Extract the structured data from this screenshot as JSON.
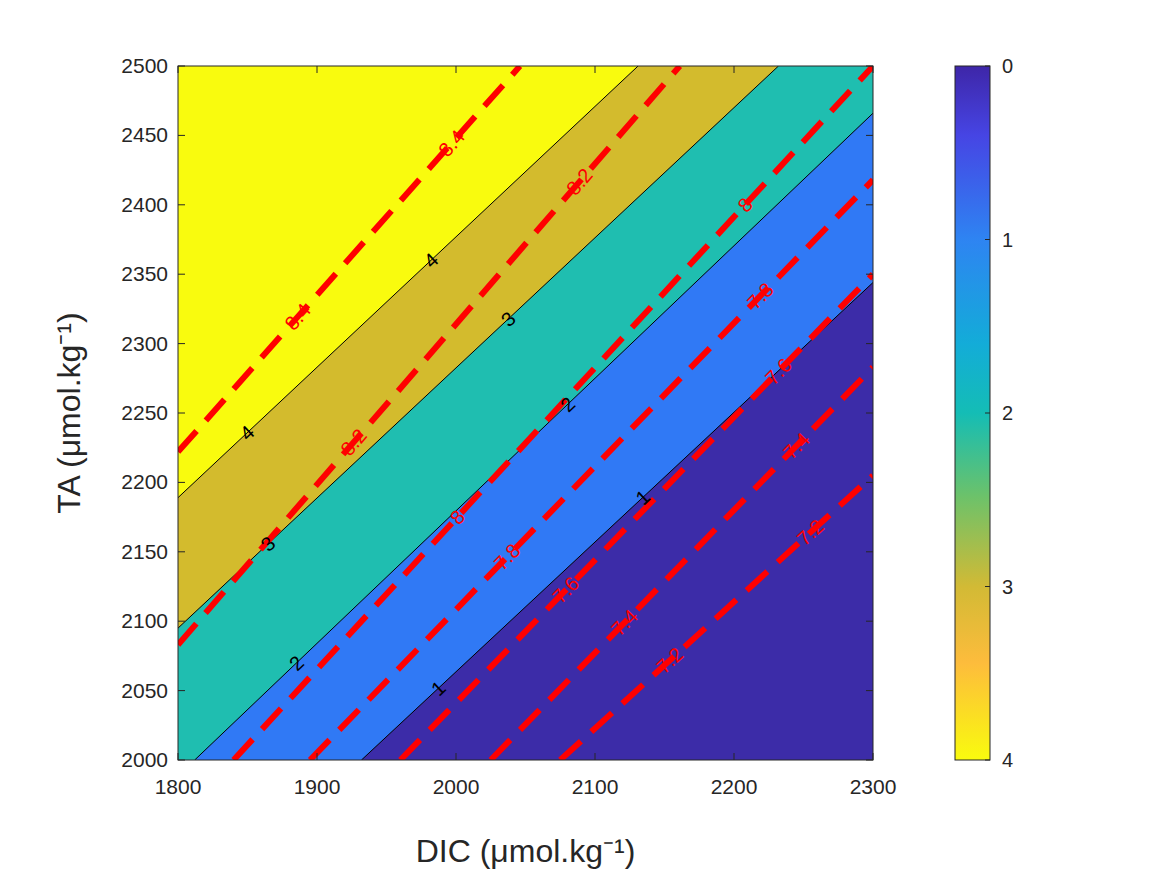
{
  "chart_data": {
    "type": "contour",
    "x_label": "DIC (μmol.kg⁻¹)",
    "y_label": "TA (μmol.kg⁻¹)",
    "xlim": [
      1800,
      2300
    ],
    "xticks": [
      1800,
      1900,
      2000,
      2100,
      2200,
      2300
    ],
    "ylim": [
      2000,
      2500
    ],
    "yticks": [
      2000,
      2050,
      2100,
      2150,
      2200,
      2250,
      2300,
      2350,
      2400,
      2450,
      2500
    ],
    "filled_contours": {
      "colors": [
        "#3c2ca8",
        "#3079f5",
        "#1fbeb0",
        "#d3bb2d",
        "#f9fb0e"
      ],
      "lines": [
        {
          "level": 1,
          "x": [
            1932,
            2300
          ],
          "y": [
            2000,
            2344
          ]
        },
        {
          "level": 2,
          "x": [
            1812,
            2300
          ],
          "y": [
            2000,
            2466
          ]
        },
        {
          "level": 3,
          "x": [
            1800,
            2232
          ],
          "y": [
            2095,
            2500
          ]
        },
        {
          "level": 4,
          "x": [
            1800,
            2131
          ],
          "y": [
            2189,
            2500
          ]
        }
      ]
    },
    "line_contours": {
      "color": "#ff0000",
      "line_style": "dashed",
      "lines": [
        {
          "level": 8.4,
          "x": [
            1800,
            2046
          ],
          "y": [
            2222,
            2500
          ]
        },
        {
          "level": 8.2,
          "x": [
            1800,
            2161
          ],
          "y": [
            2083,
            2500
          ]
        },
        {
          "level": 8,
          "x": [
            1840,
            2300
          ],
          "y": [
            2000,
            2500
          ]
        },
        {
          "level": 7.8,
          "x": [
            1895,
            2300
          ],
          "y": [
            2000,
            2418
          ]
        },
        {
          "level": 7.6,
          "x": [
            1960,
            2300
          ],
          "y": [
            2000,
            2350
          ]
        },
        {
          "level": 7.4,
          "x": [
            2025,
            2300
          ],
          "y": [
            2000,
            2283
          ]
        },
        {
          "level": 7.2,
          "x": [
            2075,
            2300
          ],
          "y": [
            2000,
            2205
          ]
        }
      ]
    },
    "colorbar": {
      "lim": [
        0,
        4
      ],
      "ticks": [
        0,
        1,
        2,
        3,
        4
      ]
    }
  }
}
